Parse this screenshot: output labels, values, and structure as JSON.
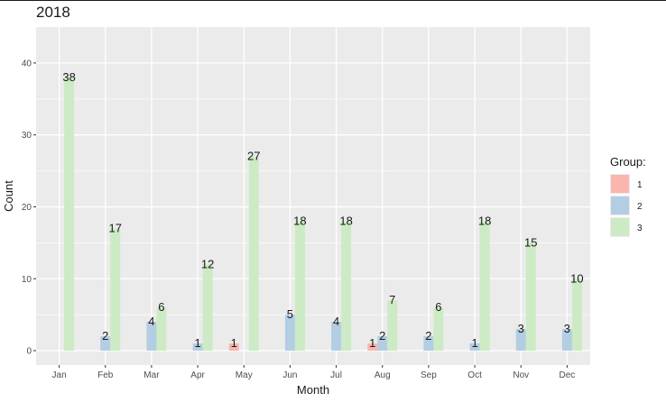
{
  "chart_data": {
    "type": "bar",
    "title": "2018",
    "xlabel": "Month",
    "ylabel": "Count",
    "categories": [
      "Jan",
      "Feb",
      "Mar",
      "Apr",
      "May",
      "Jun",
      "Jul",
      "Aug",
      "Sep",
      "Oct",
      "Nov",
      "Dec"
    ],
    "series": [
      {
        "name": "1",
        "color": "#FBB4AE",
        "values": [
          0,
          0,
          0,
          0,
          1,
          0,
          0,
          1,
          0,
          0,
          0,
          0
        ]
      },
      {
        "name": "2",
        "color": "#B3CDE3",
        "values": [
          0,
          2,
          4,
          1,
          0,
          5,
          4,
          2,
          2,
          1,
          3,
          3
        ]
      },
      {
        "name": "3",
        "color": "#CCEBC5",
        "values": [
          38,
          17,
          6,
          12,
          27,
          18,
          18,
          7,
          6,
          18,
          15,
          10
        ]
      }
    ],
    "ylim": [
      -2,
      45
    ],
    "yticks": [
      0,
      10,
      20,
      30,
      40
    ],
    "grid": true,
    "legend": {
      "title": "Group:",
      "position": "right"
    },
    "panel_background": "#EBEBEB",
    "gridline_color": "#FFFFFF"
  }
}
